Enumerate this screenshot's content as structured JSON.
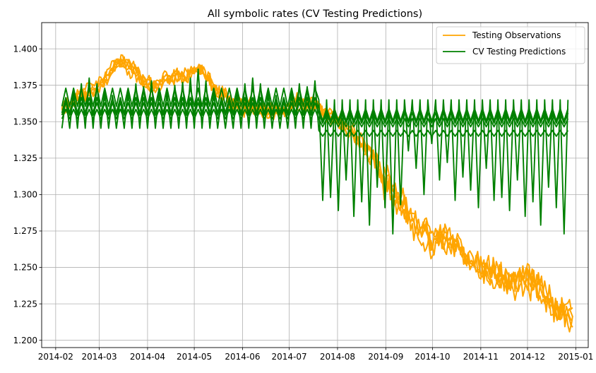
{
  "chart_data": {
    "type": "line",
    "title": "All symbolic rates (CV Testing Predictions)",
    "xlabel": "",
    "ylabel": "",
    "x_axis_type": "date",
    "xlim": [
      "2014-01-23",
      "2015-01-09"
    ],
    "ylim": [
      1.195,
      1.418
    ],
    "x_ticks": [
      "2014-02",
      "2014-03",
      "2014-04",
      "2014-05",
      "2014-06",
      "2014-07",
      "2014-08",
      "2014-09",
      "2014-10",
      "2014-11",
      "2014-12",
      "2015-01"
    ],
    "x_tick_dates": [
      "2014-02-01",
      "2014-03-01",
      "2014-04-01",
      "2014-05-01",
      "2014-06-01",
      "2014-07-01",
      "2014-08-01",
      "2014-09-01",
      "2014-10-01",
      "2014-11-01",
      "2014-12-01",
      "2015-01-01"
    ],
    "y_ticks": [
      "1.200",
      "1.225",
      "1.250",
      "1.275",
      "1.300",
      "1.325",
      "1.350",
      "1.375",
      "1.400"
    ],
    "y_tick_values": [
      1.2,
      1.225,
      1.25,
      1.275,
      1.3,
      1.325,
      1.35,
      1.375,
      1.4
    ],
    "grid": true,
    "legend_position": "top-right",
    "legend": [
      {
        "label": "Testing Observations",
        "color": "#ffa500"
      },
      {
        "label": "CV Testing Predictions",
        "color": "#008000"
      }
    ],
    "observations": {
      "name": "Testing Observations",
      "color": "#ffa500",
      "x": [
        "2014-02-05",
        "2014-02-15",
        "2014-02-25",
        "2014-03-05",
        "2014-03-12",
        "2014-03-20",
        "2014-03-28",
        "2014-04-05",
        "2014-04-15",
        "2014-04-25",
        "2014-05-05",
        "2014-05-15",
        "2014-05-25",
        "2014-06-05",
        "2014-06-15",
        "2014-06-25",
        "2014-07-05",
        "2014-07-15",
        "2014-07-25",
        "2014-08-05",
        "2014-08-15",
        "2014-08-25",
        "2014-09-01",
        "2014-09-10",
        "2014-09-20",
        "2014-10-01",
        "2014-10-10",
        "2014-10-20",
        "2014-11-01",
        "2014-11-10",
        "2014-11-20",
        "2014-12-01",
        "2014-12-10",
        "2014-12-20",
        "2014-12-30"
      ],
      "y": [
        1.358,
        1.366,
        1.372,
        1.38,
        1.39,
        1.388,
        1.38,
        1.374,
        1.38,
        1.382,
        1.387,
        1.372,
        1.364,
        1.36,
        1.357,
        1.357,
        1.362,
        1.362,
        1.355,
        1.348,
        1.337,
        1.325,
        1.31,
        1.295,
        1.28,
        1.265,
        1.27,
        1.262,
        1.248,
        1.245,
        1.24,
        1.242,
        1.235,
        1.22,
        1.215
      ],
      "copies": 5
    },
    "predictions": {
      "name": "CV Testing Predictions",
      "color": "#008000",
      "x_start": "2014-02-05",
      "x_end": "2014-12-28",
      "base_levels": [
        1.3455,
        1.352,
        1.3545,
        1.356,
        1.3605
      ],
      "cycle_days": 5,
      "spike_peaks_early": [
        1.366,
        1.372,
        1.376,
        1.38,
        1.376,
        1.372,
        1.368,
        1.366,
        1.372,
        1.376,
        1.374,
        1.378,
        1.372,
        1.37,
        1.375,
        1.377,
        1.38,
        1.386,
        1.378,
        1.372,
        1.366
      ],
      "spike_troughs_late": [
        1.33,
        1.318,
        1.3,
        1.335,
        1.31,
        1.322,
        1.296,
        1.312,
        1.303,
        1.291,
        1.318,
        1.296,
        1.298,
        1.289,
        1.31,
        1.285,
        1.295,
        1.279,
        1.305,
        1.291,
        1.273,
        1.293
      ]
    }
  }
}
